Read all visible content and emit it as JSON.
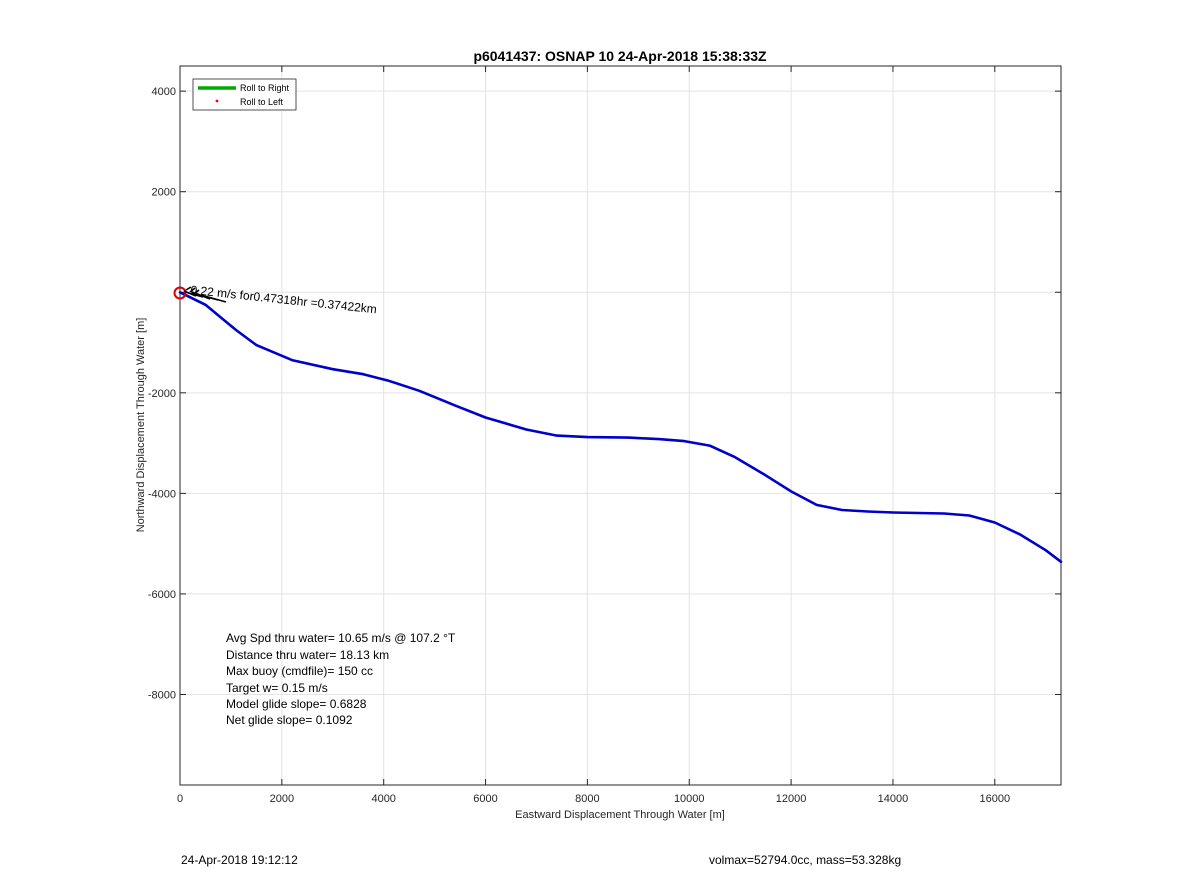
{
  "chart_data": {
    "type": "line",
    "title": "p6041437: OSNAP 10 24-Apr-2018 15:38:33Z",
    "xlabel": "Eastward Displacement Through Water [m]",
    "ylabel": "Northward Displacement Through Water [m]",
    "xlim": [
      0,
      17300
    ],
    "ylim": [
      -9800,
      4500
    ],
    "xticks": [
      0,
      2000,
      4000,
      6000,
      8000,
      10000,
      12000,
      14000,
      16000
    ],
    "yticks": [
      -8000,
      -6000,
      -4000,
      -2000,
      0,
      2000,
      4000
    ],
    "ytick_labels": [
      "-8000",
      "-6000",
      "-4000",
      "-2000",
      "",
      "2000",
      "4000"
    ],
    "grid": true,
    "legend": {
      "placement": "top-left",
      "entries": [
        {
          "label": "Roll to Right",
          "color": "#00aa00",
          "style": "line"
        },
        {
          "label": "Roll to Left",
          "color": "#ff0000",
          "style": "dot"
        }
      ]
    },
    "series": [
      {
        "color": "#0000cc",
        "x": [
          0,
          200,
          500,
          800,
          1100,
          1500,
          2200,
          3000,
          3600,
          4100,
          4700,
          5400,
          6000,
          6800,
          7400,
          8000,
          8800,
          9400,
          9900,
          10400,
          10900,
          11500,
          12000,
          12500,
          13000,
          13500,
          14000,
          14500,
          15000,
          15500,
          16000,
          16500,
          17000,
          17300
        ],
        "y": [
          0,
          -100,
          -250,
          -500,
          -750,
          -1050,
          -1350,
          -1530,
          -1630,
          -1760,
          -1960,
          -2250,
          -2490,
          -2730,
          -2850,
          -2880,
          -2890,
          -2920,
          -2960,
          -3050,
          -3280,
          -3640,
          -3960,
          -4230,
          -4330,
          -4360,
          -4380,
          -4390,
          -4400,
          -4440,
          -4580,
          -4820,
          -5130,
          -5360
        ]
      }
    ],
    "annotation": {
      "text": "0.22 m/s for0.47318hr =0.37422km",
      "x": 200,
      "y": -30
    },
    "stats_lines": [
      "Avg Spd thru water= 10.65 m/s @ 107.2 °T",
      "Distance thru water= 18.13 km",
      "Max buoy (cmdfile)= 150 cc",
      "Target w= 0.15 m/s",
      "Model glide slope= 0.6828",
      "Net glide slope= 0.1092"
    ]
  },
  "footer": {
    "left": "24-Apr-2018 19:12:12",
    "right": "volmax=52794.0cc, mass=53.328kg"
  },
  "colors": {
    "track": "#0000cc",
    "start_marker": "#dd0000",
    "grid": "#e3e3e3",
    "axes": "#262626"
  }
}
